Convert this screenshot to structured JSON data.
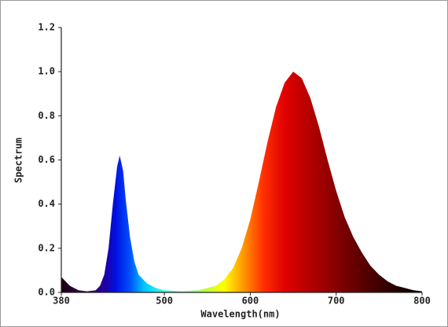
{
  "chart_data": {
    "type": "area",
    "x_label": "Wavelength(nm)",
    "y_label": "Spectrum",
    "x": [
      380,
      385,
      390,
      400,
      410,
      420,
      425,
      430,
      435,
      440,
      445,
      448,
      452,
      455,
      460,
      465,
      470,
      480,
      490,
      500,
      520,
      540,
      560,
      570,
      580,
      590,
      600,
      610,
      620,
      630,
      640,
      650,
      660,
      670,
      680,
      690,
      700,
      710,
      720,
      730,
      740,
      750,
      760,
      770,
      780,
      790,
      800
    ],
    "values": [
      0.07,
      0.05,
      0.03,
      0.01,
      0.005,
      0.01,
      0.03,
      0.08,
      0.2,
      0.4,
      0.57,
      0.62,
      0.55,
      0.42,
      0.25,
      0.14,
      0.08,
      0.04,
      0.02,
      0.01,
      0.005,
      0.01,
      0.03,
      0.06,
      0.11,
      0.2,
      0.33,
      0.5,
      0.68,
      0.84,
      0.95,
      1.0,
      0.97,
      0.88,
      0.75,
      0.6,
      0.46,
      0.34,
      0.25,
      0.18,
      0.12,
      0.08,
      0.05,
      0.03,
      0.02,
      0.01,
      0.005
    ],
    "xlim": [
      380,
      800
    ],
    "xticks": [
      380,
      500,
      600,
      700,
      800
    ],
    "ylim": [
      0,
      1.2
    ],
    "yticks": [
      {
        "value": 0,
        "label": "0.0"
      },
      0.2,
      0.4,
      0.6,
      0.8,
      {
        "value": 1,
        "label": "1.0"
      },
      1.2
    ]
  }
}
